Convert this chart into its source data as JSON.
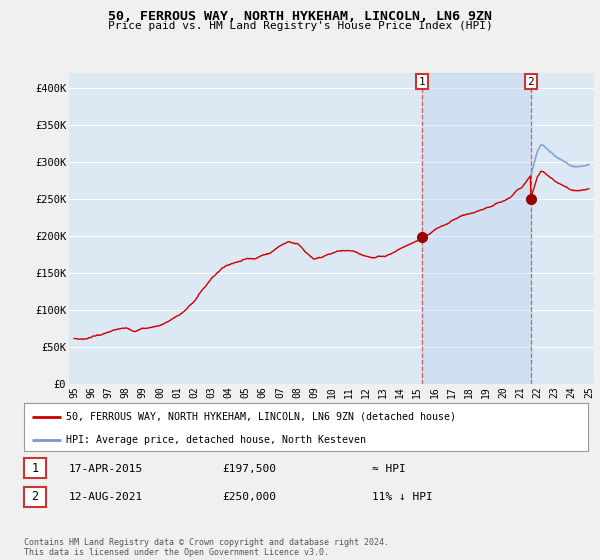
{
  "title": "50, FERROUS WAY, NORTH HYKEHAM, LINCOLN, LN6 9ZN",
  "subtitle": "Price paid vs. HM Land Registry's House Price Index (HPI)",
  "ylabel_ticks": [
    "£0",
    "£50K",
    "£100K",
    "£150K",
    "£200K",
    "£250K",
    "£300K",
    "£350K",
    "£400K"
  ],
  "ytick_vals": [
    0,
    50000,
    100000,
    150000,
    200000,
    250000,
    300000,
    350000,
    400000
  ],
  "ylim": [
    0,
    420000
  ],
  "xlim_start": 1994.7,
  "xlim_end": 2025.3,
  "background_color": "#f0f0f0",
  "plot_bg_color": "#dce9f5",
  "shade_color": "#c8d8ee",
  "grid_color": "#ffffff",
  "hpi_line_color": "#7799cc",
  "price_line_color": "#cc0000",
  "marker_color": "#990000",
  "sale1_x": 2015.29,
  "sale1_y": 197500,
  "sale2_x": 2021.62,
  "sale2_y": 250000,
  "legend_label1": "50, FERROUS WAY, NORTH HYKEHAM, LINCOLN, LN6 9ZN (detached house)",
  "legend_label2": "HPI: Average price, detached house, North Kesteven",
  "note1_num": "1",
  "note1_date": "17-APR-2015",
  "note1_price": "£197,500",
  "note1_hpi": "≈ HPI",
  "note2_num": "2",
  "note2_date": "12-AUG-2021",
  "note2_price": "£250,000",
  "note2_hpi": "11% ↓ HPI",
  "footer": "Contains HM Land Registry data © Crown copyright and database right 2024.\nThis data is licensed under the Open Government Licence v3.0.",
  "xtick_years": [
    1995,
    1996,
    1997,
    1998,
    1999,
    2000,
    2001,
    2002,
    2003,
    2004,
    2005,
    2006,
    2007,
    2008,
    2009,
    2010,
    2011,
    2012,
    2013,
    2014,
    2015,
    2016,
    2017,
    2018,
    2019,
    2020,
    2021,
    2022,
    2023,
    2024,
    2025
  ]
}
